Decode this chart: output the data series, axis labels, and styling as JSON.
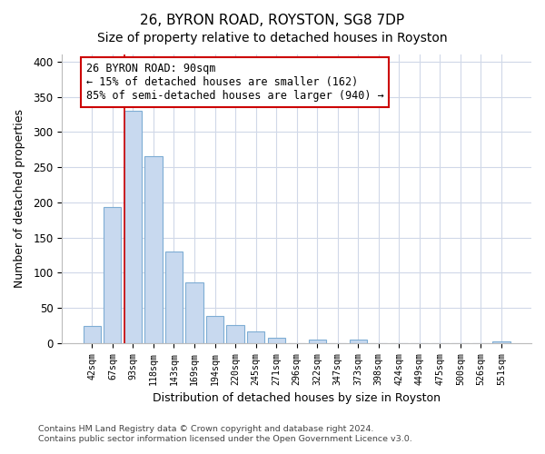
{
  "title": "26, BYRON ROAD, ROYSTON, SG8 7DP",
  "subtitle": "Size of property relative to detached houses in Royston",
  "xlabel": "Distribution of detached houses by size in Royston",
  "ylabel": "Number of detached properties",
  "bar_labels": [
    "42sqm",
    "67sqm",
    "93sqm",
    "118sqm",
    "143sqm",
    "169sqm",
    "194sqm",
    "220sqm",
    "245sqm",
    "271sqm",
    "296sqm",
    "322sqm",
    "347sqm",
    "373sqm",
    "398sqm",
    "424sqm",
    "449sqm",
    "475sqm",
    "500sqm",
    "526sqm",
    "551sqm"
  ],
  "bar_values": [
    25,
    193,
    330,
    266,
    130,
    86,
    38,
    26,
    17,
    8,
    0,
    5,
    0,
    5,
    0,
    0,
    0,
    0,
    0,
    0,
    3
  ],
  "bar_color": "#c8d9ef",
  "bar_edge_color": "#7eadd4",
  "vline_x_index": 2,
  "vline_color": "#cc0000",
  "annotation_text": "26 BYRON ROAD: 90sqm\n← 15% of detached houses are smaller (162)\n85% of semi-detached houses are larger (940) →",
  "annotation_box_facecolor": "#ffffff",
  "annotation_box_edgecolor": "#cc0000",
  "ylim": [
    0,
    410
  ],
  "yticks": [
    0,
    50,
    100,
    150,
    200,
    250,
    300,
    350,
    400
  ],
  "footnote1": "Contains HM Land Registry data © Crown copyright and database right 2024.",
  "footnote2": "Contains public sector information licensed under the Open Government Licence v3.0.",
  "bg_color": "#ffffff",
  "plot_bg_color": "#ffffff",
  "grid_color": "#d0d8e8",
  "title_fontsize": 11,
  "subtitle_fontsize": 10
}
